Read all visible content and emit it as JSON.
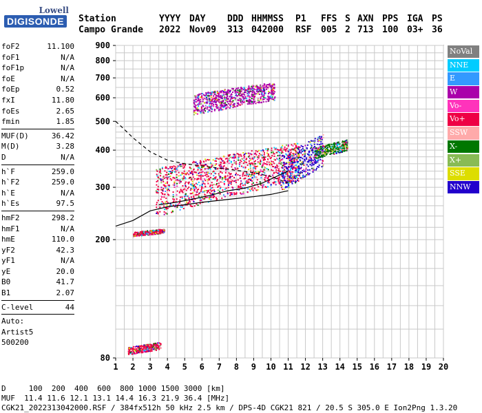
{
  "logo": {
    "top": "Lowell",
    "main": "DIGISONDE"
  },
  "header": {
    "row1": [
      "Station",
      "YYYY",
      "DAY",
      "DDD",
      "HHMMSS",
      "P1",
      "FFS",
      "S",
      "AXN",
      "PPS",
      "IGA",
      "PS"
    ],
    "row2": [
      "Campo Grande",
      "2022",
      "Nov09",
      "313",
      "042000",
      "RSF",
      "005",
      "2",
      "713",
      "100",
      "03+",
      "36"
    ]
  },
  "params": [
    [
      {
        "k": "foF2",
        "v": "11.100"
      },
      {
        "k": "foF1",
        "v": "N/A"
      },
      {
        "k": "foF1p",
        "v": "N/A"
      },
      {
        "k": "foE",
        "v": "N/A"
      },
      {
        "k": "foEp",
        "v": "0.52"
      },
      {
        "k": "fxI",
        "v": "11.80"
      },
      {
        "k": "foEs",
        "v": "2.65"
      },
      {
        "k": "fmin",
        "v": "1.85"
      }
    ],
    [
      {
        "k": "MUF(D)",
        "v": "36.42"
      },
      {
        "k": "M(D)",
        "v": "3.28"
      },
      {
        "k": "D",
        "v": "N/A"
      }
    ],
    [
      {
        "k": "h`F",
        "v": "259.0"
      },
      {
        "k": "h`F2",
        "v": "259.0"
      },
      {
        "k": "h`E",
        "v": "N/A"
      },
      {
        "k": "h`Es",
        "v": "97.5"
      }
    ],
    [
      {
        "k": "hmF2",
        "v": "298.2"
      },
      {
        "k": "hmF1",
        "v": "N/A"
      },
      {
        "k": "hmE",
        "v": "110.0"
      },
      {
        "k": "yF2",
        "v": "42.3"
      },
      {
        "k": "yF1",
        "v": "N/A"
      },
      {
        "k": "yE",
        "v": "20.0"
      },
      {
        "k": "B0",
        "v": "41.7"
      },
      {
        "k": "B1",
        "v": "2.07"
      }
    ],
    [
      {
        "k": "C-level",
        "v": "44"
      }
    ]
  ],
  "auto": [
    "Auto:",
    "Artist5",
    "500200"
  ],
  "legend": [
    {
      "label": "NoVal",
      "color": "#808080"
    },
    {
      "label": "NNE",
      "color": "#00ccff"
    },
    {
      "label": "E",
      "color": "#3399ff"
    },
    {
      "label": "W",
      "color": "#aa00aa"
    },
    {
      "label": "Vo-",
      "color": "#ff33bb"
    },
    {
      "label": "Vo+",
      "color": "#ee0044"
    },
    {
      "label": "SSW",
      "color": "#ffaaaa"
    },
    {
      "label": "X-",
      "color": "#007700"
    },
    {
      "label": "X+",
      "color": "#88bb55"
    },
    {
      "label": "SSE",
      "color": "#dddd00"
    },
    {
      "label": "NNW",
      "color": "#2200cc"
    }
  ],
  "bottom": {
    "line1": "D     100  200  400  600  800 1000 1500 3000 [km]",
    "line2": "MUF  11.4 11.6 12.1 13.1 14.4 16.3 21.9 36.4 [MHz]",
    "line3": "CGK21_2022313042000.RSF / 384fx512h 50 kHz 2.5 km / DPS-4D CGK21 821 / 20.5 S 305.0 E Ion2Png 1.3.20"
  },
  "chart_data": {
    "type": "scatter",
    "xlim": [
      1,
      20
    ],
    "ylim": [
      80,
      900
    ],
    "xticks": [
      1,
      2,
      3,
      4,
      5,
      6,
      7,
      8,
      9,
      10,
      11,
      12,
      13,
      14,
      15,
      16,
      17,
      18,
      19,
      20
    ],
    "yticks": [
      80,
      200,
      300,
      400,
      500,
      600,
      700,
      800,
      900
    ],
    "y_scale": "log",
    "grid": true,
    "legend_position": "right",
    "clusters": [
      {
        "source": "Vo+",
        "f": [
          1.7,
          3.6
        ],
        "h": [
          83,
          90
        ]
      },
      {
        "source": "Vo+",
        "f": [
          2.0,
          3.8
        ],
        "h": [
          207,
          217
        ]
      },
      {
        "source": "Vo+",
        "f": [
          3.3,
          11.6
        ],
        "h": [
          255,
          410
        ]
      },
      {
        "source": "NNW",
        "f": [
          10.5,
          13.0
        ],
        "h": [
          300,
          440
        ]
      },
      {
        "source": "X-",
        "f": [
          12.5,
          14.4
        ],
        "h": [
          380,
          430
        ]
      },
      {
        "source": "W",
        "f": [
          5.5,
          10.2
        ],
        "h": [
          540,
          670
        ]
      }
    ],
    "profile": [
      [
        1.0,
        500
      ],
      [
        1.5,
        470
      ],
      [
        2.0,
        440
      ],
      [
        3.0,
        395
      ],
      [
        4.0,
        370
      ],
      [
        5.0,
        360
      ],
      [
        6.0,
        354
      ],
      [
        7.0,
        348
      ],
      [
        8.0,
        342
      ],
      [
        9.0,
        336
      ],
      [
        10.0,
        326
      ],
      [
        11.0,
        310
      ]
    ],
    "trace": [
      [
        1.0,
        222
      ],
      [
        2.0,
        232
      ],
      [
        3.0,
        250
      ],
      [
        4.0,
        258
      ],
      [
        5.0,
        262
      ],
      [
        6.0,
        267
      ],
      [
        7.0,
        271
      ],
      [
        8.0,
        275
      ],
      [
        9.0,
        279
      ],
      [
        10.0,
        284
      ],
      [
        11.0,
        292
      ]
    ],
    "trace_upper": [
      [
        3.5,
        262
      ],
      [
        4.5,
        267
      ],
      [
        5.5,
        274
      ],
      [
        6.5,
        282
      ],
      [
        7.5,
        292
      ],
      [
        8.5,
        298
      ],
      [
        9.5,
        310
      ],
      [
        10.5,
        330
      ],
      [
        11.0,
        340
      ]
    ]
  }
}
